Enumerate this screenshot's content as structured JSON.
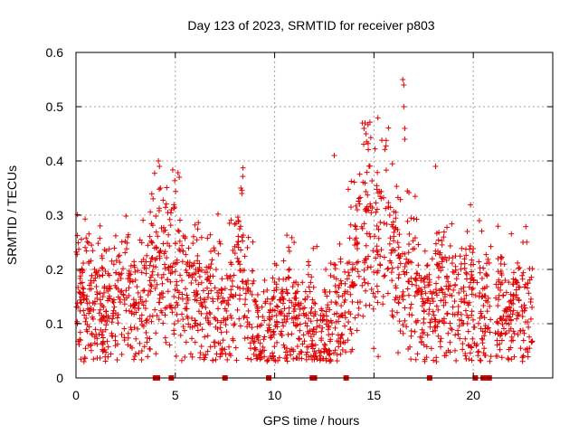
{
  "chart_data": {
    "type": "scatter",
    "title": "Day 123 of 2023, SRMTID for receiver p803",
    "xlabel": "GPS time / hours",
    "ylabel": "SRMTID / TECUs",
    "xlim": [
      0,
      24
    ],
    "ylim": [
      0,
      0.6
    ],
    "xticks": [
      0,
      5,
      10,
      15,
      20
    ],
    "xtick_labels": [
      "0",
      "5",
      "10",
      "15",
      "20"
    ],
    "yticks": [
      0,
      0.1,
      0.2,
      0.3,
      0.4,
      0.5,
      0.6
    ],
    "ytick_labels": [
      "0",
      "0.1",
      "0.2",
      "0.3",
      "0.4",
      "0.5",
      "0.6"
    ],
    "grid": true,
    "marker": "+",
    "color": "#e00000",
    "zero_markers_x": [
      4.0,
      4.1,
      4.8,
      7.5,
      9.7,
      11.9,
      12.0,
      13.6,
      17.8,
      20.1,
      20.5,
      20.7,
      20.8
    ],
    "envelope": [
      {
        "x": 0.0,
        "y": 0.15
      },
      {
        "x": 0.5,
        "y": 0.15
      },
      {
        "x": 1.0,
        "y": 0.13
      },
      {
        "x": 1.5,
        "y": 0.12
      },
      {
        "x": 2.0,
        "y": 0.14
      },
      {
        "x": 2.5,
        "y": 0.15
      },
      {
        "x": 3.0,
        "y": 0.13
      },
      {
        "x": 3.5,
        "y": 0.16
      },
      {
        "x": 4.0,
        "y": 0.19
      },
      {
        "x": 4.3,
        "y": 0.21
      },
      {
        "x": 4.8,
        "y": 0.2
      },
      {
        "x": 5.0,
        "y": 0.22
      },
      {
        "x": 5.5,
        "y": 0.17
      },
      {
        "x": 6.0,
        "y": 0.15
      },
      {
        "x": 6.5,
        "y": 0.13
      },
      {
        "x": 7.0,
        "y": 0.14
      },
      {
        "x": 7.5,
        "y": 0.12
      },
      {
        "x": 8.0,
        "y": 0.17
      },
      {
        "x": 8.4,
        "y": 0.22
      },
      {
        "x": 8.8,
        "y": 0.13
      },
      {
        "x": 9.2,
        "y": 0.08
      },
      {
        "x": 9.6,
        "y": 0.07
      },
      {
        "x": 10.0,
        "y": 0.1
      },
      {
        "x": 10.5,
        "y": 0.12
      },
      {
        "x": 11.0,
        "y": 0.11
      },
      {
        "x": 11.5,
        "y": 0.08
      },
      {
        "x": 12.0,
        "y": 0.1
      },
      {
        "x": 12.5,
        "y": 0.09
      },
      {
        "x": 13.0,
        "y": 0.11
      },
      {
        "x": 13.5,
        "y": 0.14
      },
      {
        "x": 14.0,
        "y": 0.22
      },
      {
        "x": 14.5,
        "y": 0.28
      },
      {
        "x": 15.0,
        "y": 0.26
      },
      {
        "x": 15.5,
        "y": 0.29
      },
      {
        "x": 16.0,
        "y": 0.22
      },
      {
        "x": 16.5,
        "y": 0.19
      },
      {
        "x": 17.0,
        "y": 0.16
      },
      {
        "x": 17.5,
        "y": 0.13
      },
      {
        "x": 18.0,
        "y": 0.16
      },
      {
        "x": 18.5,
        "y": 0.17
      },
      {
        "x": 19.0,
        "y": 0.15
      },
      {
        "x": 19.5,
        "y": 0.15
      },
      {
        "x": 20.0,
        "y": 0.14
      },
      {
        "x": 20.5,
        "y": 0.13
      },
      {
        "x": 21.0,
        "y": 0.12
      },
      {
        "x": 21.5,
        "y": 0.13
      },
      {
        "x": 22.0,
        "y": 0.12
      },
      {
        "x": 22.5,
        "y": 0.13
      },
      {
        "x": 23.0,
        "y": 0.13
      }
    ],
    "outliers": [
      {
        "x": 4.15,
        "y": 0.4
      },
      {
        "x": 4.2,
        "y": 0.39
      },
      {
        "x": 4.25,
        "y": 0.35
      },
      {
        "x": 4.8,
        "y": 0.31
      },
      {
        "x": 5.2,
        "y": 0.37
      },
      {
        "x": 8.3,
        "y": 0.35
      },
      {
        "x": 8.35,
        "y": 0.34
      },
      {
        "x": 13.0,
        "y": 0.41
      },
      {
        "x": 14.5,
        "y": 0.46
      },
      {
        "x": 14.55,
        "y": 0.47
      },
      {
        "x": 14.6,
        "y": 0.45
      },
      {
        "x": 16.45,
        "y": 0.55
      },
      {
        "x": 16.5,
        "y": 0.54
      },
      {
        "x": 16.5,
        "y": 0.5
      },
      {
        "x": 16.55,
        "y": 0.46
      },
      {
        "x": 16.55,
        "y": 0.44
      },
      {
        "x": 18.1,
        "y": 0.39
      },
      {
        "x": 19.7,
        "y": 0.27
      },
      {
        "x": 22.5,
        "y": 0.25
      }
    ],
    "gap_ranges": [
      [
        20.9,
        21.1
      ]
    ],
    "n_points": 2000
  }
}
